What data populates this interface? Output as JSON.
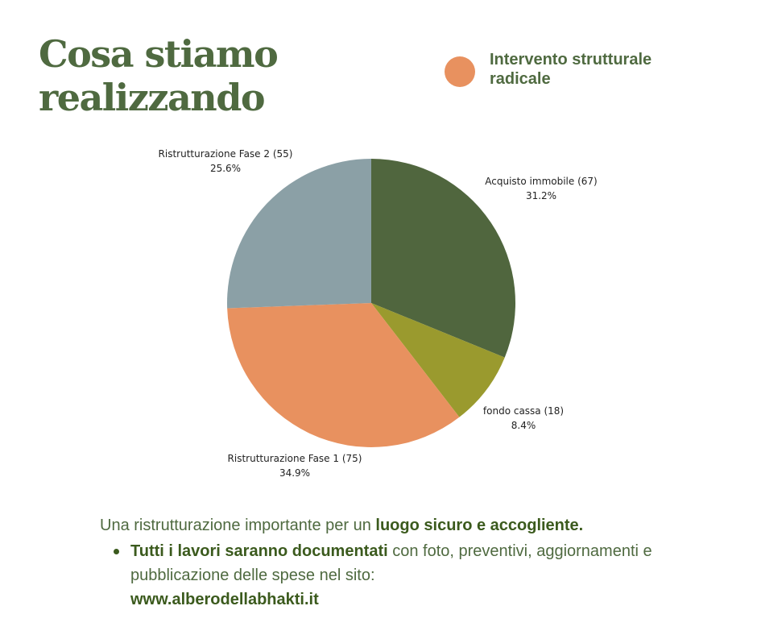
{
  "title": {
    "line1": "Cosa stiamo",
    "line2": "realizzando"
  },
  "legend": {
    "label": "Intervento strutturale radicale",
    "color": "#e8915f"
  },
  "chart_data": {
    "type": "pie",
    "title": "",
    "slices": [
      {
        "label": "Acquisto immobile (67)",
        "value": 67,
        "percent": "31.2%",
        "color": "#50663e"
      },
      {
        "label": "fondo cassa (18)",
        "value": 18,
        "percent": "8.4%",
        "color": "#9a9a2e"
      },
      {
        "label": "Ristrutturazione Fase 1 (75)",
        "value": 75,
        "percent": "34.9%",
        "color": "#e8915f"
      },
      {
        "label": "Ristrutturazione Fase 2 (55)",
        "value": 55,
        "percent": "25.6%",
        "color": "#8ba0a6"
      }
    ]
  },
  "caption": {
    "line1_plain": "Una ristrutturazione importante per un ",
    "line1_bold": "luogo sicuro e accogliente.",
    "bullet_bold": "Tutti i lavori saranno documentati",
    "bullet_plain": " con foto, preventivi, aggiornamenti e pubblicazione delle spese nel sito:",
    "website": "www.alberodellabhakti.it"
  }
}
